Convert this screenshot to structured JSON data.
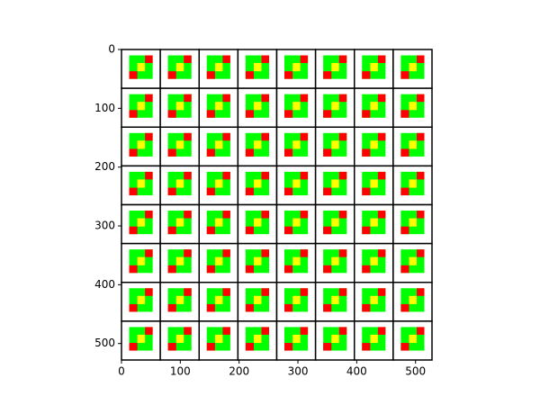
{
  "chart_data": {
    "type": "image",
    "xlim": [
      0,
      528
    ],
    "ylim": [
      528,
      0
    ],
    "xticks": [
      0,
      100,
      200,
      300,
      400,
      500
    ],
    "yticks": [
      0,
      100,
      200,
      300,
      400,
      500
    ]
  }
}
